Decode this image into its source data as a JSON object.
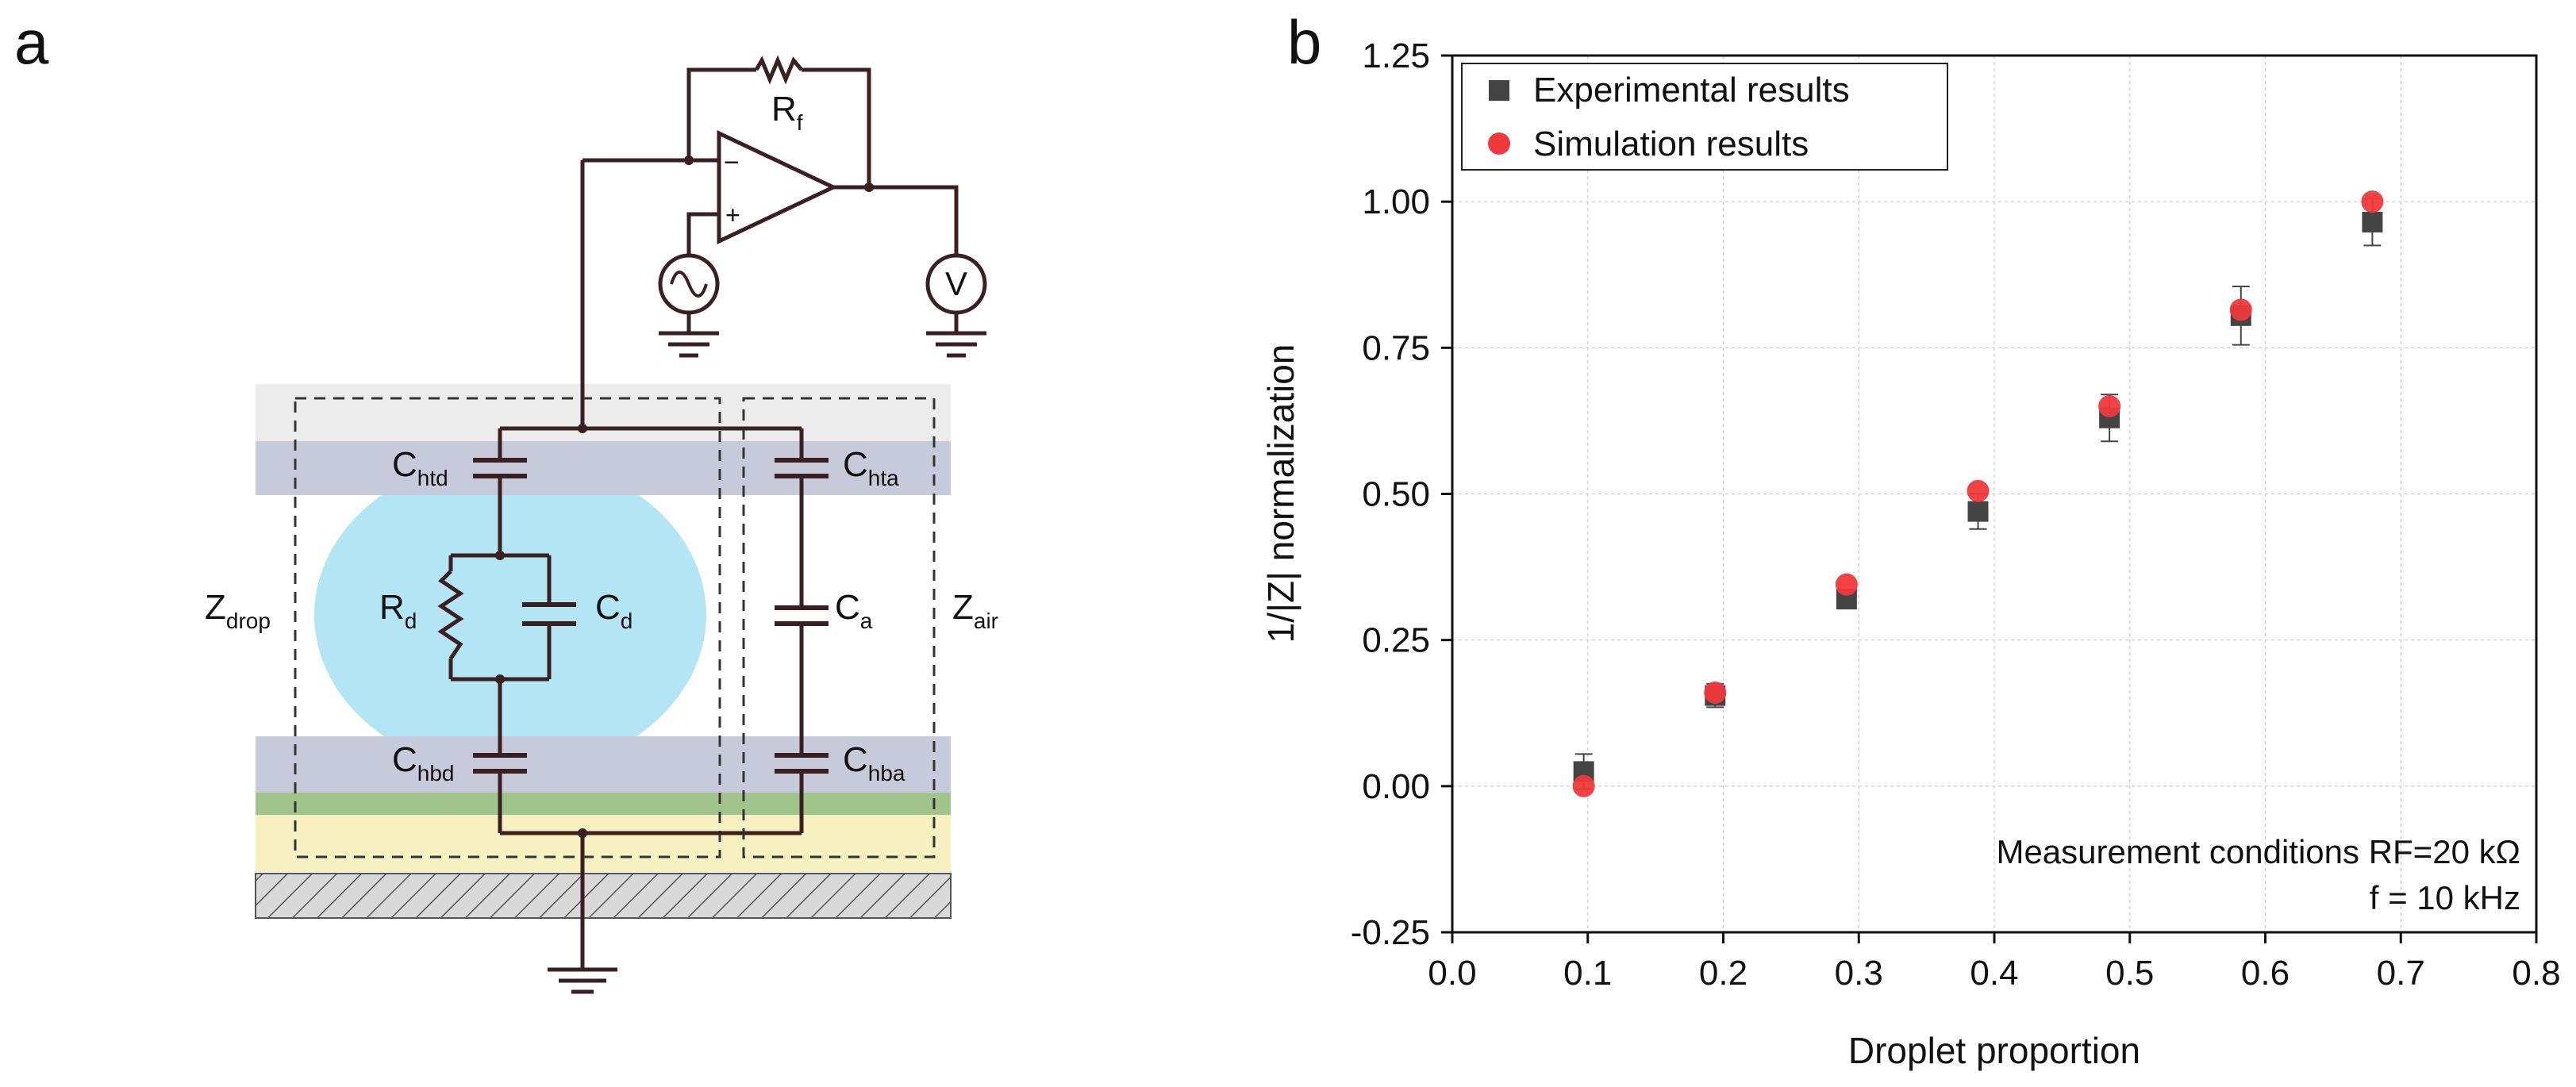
{
  "panels": {
    "a": "a",
    "b": "b"
  },
  "circuit": {
    "labels": {
      "rf": "R",
      "rf_sub": "f",
      "minus": "−",
      "plus": "+",
      "voltmeter": "V",
      "chtd": "C",
      "chtd_sub": "htd",
      "chta": "C",
      "chta_sub": "hta",
      "rd": "R",
      "rd_sub": "d",
      "cd": "C",
      "cd_sub": "d",
      "ca": "C",
      "ca_sub": "a",
      "chbd": "C",
      "chbd_sub": "hbd",
      "chba": "C",
      "chba_sub": "hba",
      "zdrop": "Z",
      "zdrop_sub": "drop",
      "zair": "Z",
      "zair_sub": "air"
    },
    "colors": {
      "top_layer": "#ececec",
      "electrode_layer": "#c7cadb",
      "droplet": "#b3e5f5",
      "green_layer": "#9fc58a",
      "yellow_layer": "#f7f0c1",
      "wire": "#3a2020"
    }
  },
  "chart_data": {
    "type": "scatter",
    "xlabel": "Droplet proportion",
    "ylabel": "1/|Z| normalization",
    "xlim": [
      0.0,
      0.8
    ],
    "ylim": [
      -0.25,
      1.25
    ],
    "xticks": [
      "0.0",
      "0.1",
      "0.2",
      "0.3",
      "0.4",
      "0.5",
      "0.6",
      "0.7",
      "0.8"
    ],
    "yticks": [
      "-0.25",
      "0.00",
      "0.25",
      "0.50",
      "0.75",
      "1.00",
      "1.25"
    ],
    "grid": true,
    "legend_position": "top-left",
    "series": [
      {
        "name": "Experimental results",
        "marker": "square",
        "color": "#444444",
        "x": [
          0.097,
          0.194,
          0.291,
          0.388,
          0.485,
          0.582,
          0.679
        ],
        "y": [
          0.025,
          0.155,
          0.32,
          0.47,
          0.63,
          0.805,
          0.965
        ],
        "yerr": [
          0.03,
          0.02,
          0.01,
          0.03,
          0.04,
          0.05,
          0.04
        ]
      },
      {
        "name": "Simulation results",
        "marker": "circle",
        "color": "#f0393c",
        "x": [
          0.097,
          0.194,
          0.291,
          0.388,
          0.485,
          0.582,
          0.679
        ],
        "y": [
          0.0,
          0.16,
          0.345,
          0.505,
          0.65,
          0.815,
          1.0
        ]
      }
    ],
    "annotations": [
      "Measurement conditions  RF=20 kΩ",
      "f = 10 kHz"
    ]
  }
}
